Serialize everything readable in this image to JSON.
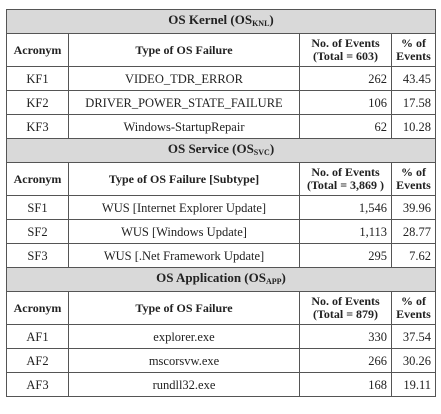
{
  "columns": {
    "acronym": "Acronym",
    "pct": "% of Events"
  },
  "sections": [
    {
      "title": "OS Kernel (OS",
      "title_sub": "KNL",
      "title_end": ")",
      "failure_header": "Type of OS Failure",
      "events_header": "No. of Events (Total = 603)",
      "rows": [
        {
          "acronym": "KF1",
          "failure": "VIDEO_TDR_ERROR",
          "events": "262",
          "pct": "43.45"
        },
        {
          "acronym": "KF2",
          "failure": "DRIVER_POWER_STATE_FAILURE",
          "events": "106",
          "pct": "17.58"
        },
        {
          "acronym": "KF3",
          "failure": "Windows-StartupRepair",
          "events": "62",
          "pct": "10.28"
        }
      ]
    },
    {
      "title": "OS Service (OS",
      "title_sub": "SVC",
      "title_end": ")",
      "failure_header": "Type of OS Failure [Subtype]",
      "events_header": "No. of Events (Total = 3,869 )",
      "rows": [
        {
          "acronym": "SF1",
          "failure": "WUS [Internet Explorer Update]",
          "events": "1,546",
          "pct": "39.96"
        },
        {
          "acronym": "SF2",
          "failure": "WUS [Windows Update]",
          "events": "1,113",
          "pct": "28.77"
        },
        {
          "acronym": "SF3",
          "failure": "WUS [.Net Framework Update]",
          "events": "295",
          "pct": "7.62"
        }
      ]
    },
    {
      "title": "OS Application (OS",
      "title_sub": "APP",
      "title_end": ")",
      "failure_header": "Type of OS Failure",
      "events_header": "No. of Events (Total = 879)",
      "rows": [
        {
          "acronym": "AF1",
          "failure": "explorer.exe",
          "events": "330",
          "pct": "37.54"
        },
        {
          "acronym": "AF2",
          "failure": "mscorsvw.exe",
          "events": "266",
          "pct": "30.26"
        },
        {
          "acronym": "AF3",
          "failure": "rundll32.exe",
          "events": "168",
          "pct": "19.11"
        }
      ]
    }
  ]
}
